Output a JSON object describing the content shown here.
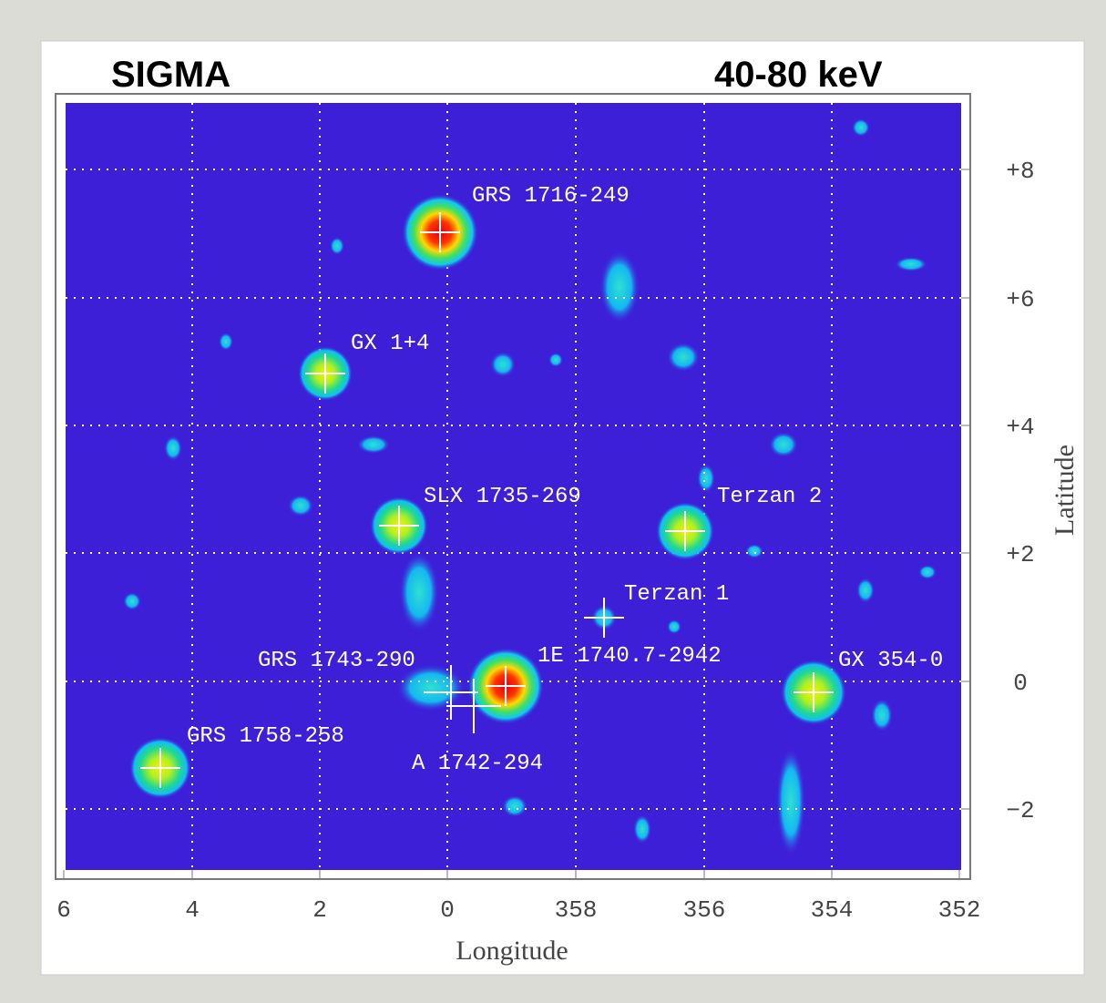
{
  "header": {
    "instrument": "SIGMA",
    "energy_band": "40-80 keV"
  },
  "axes": {
    "x_label": "Longitude",
    "y_label": "Latitude",
    "x_ticks": [
      "6",
      "4",
      "2",
      "0",
      "358",
      "356",
      "354",
      "352"
    ],
    "y_ticks": [
      "+8",
      "+6",
      "+4",
      "+2",
      "0",
      "−2"
    ]
  },
  "sources": [
    {
      "label": "GRS 1716-249"
    },
    {
      "label": "GX 1+4"
    },
    {
      "label": "SLX 1735-269"
    },
    {
      "label": "Terzan 2"
    },
    {
      "label": "Terzan 1"
    },
    {
      "label": "1E 1740.7-2942"
    },
    {
      "label": "GRS 1743-290"
    },
    {
      "label": "A 1742-294"
    },
    {
      "label": "GX 354-0"
    },
    {
      "label": "GRS 1758-258"
    }
  ]
}
